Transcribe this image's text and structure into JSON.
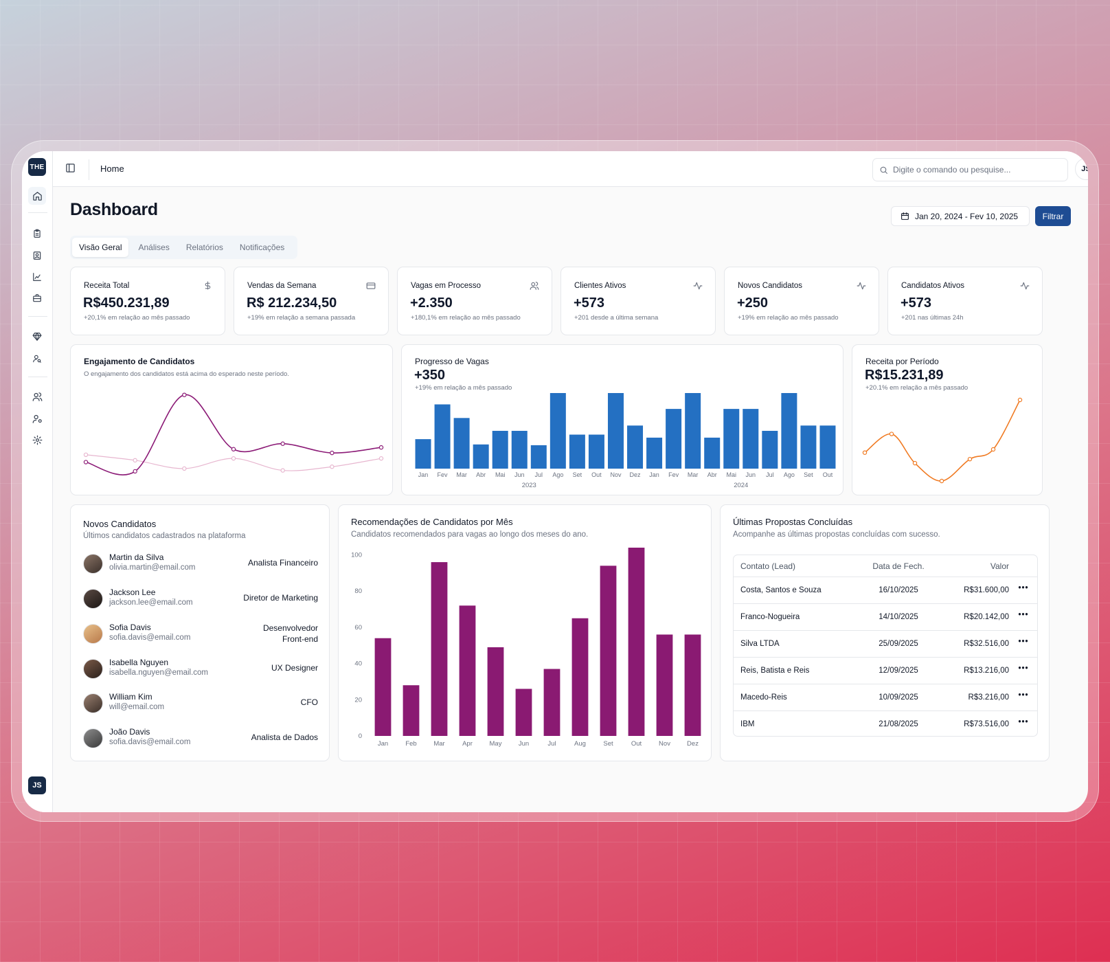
{
  "sidebar": {
    "logo": "THE",
    "avatar": "JS",
    "icons": [
      "home-icon",
      "clipboard-icon",
      "contact-card-icon",
      "chart-icon",
      "briefcase-icon",
      "gem-icon",
      "user-search-icon",
      "users-icon",
      "user-cog-icon",
      "settings-icon"
    ]
  },
  "header": {
    "breadcrumb": "Home",
    "search_placeholder": "Digite o comando ou pesquise...",
    "avatar": "JS"
  },
  "page": {
    "title": "Dashboard",
    "date_range": "Jan 20, 2024 - Fev 10, 2025",
    "filter_label": "Filtrar",
    "tabs": [
      {
        "label": "Visão Geral",
        "active": true
      },
      {
        "label": "Análises",
        "active": false
      },
      {
        "label": "Relatórios",
        "active": false
      },
      {
        "label": "Notificações",
        "active": false
      }
    ]
  },
  "kpis": [
    {
      "title": "Receita Total",
      "icon": "dollar-icon",
      "value": "R$450.231,89",
      "sub": "+20,1% em relação ao mês passado"
    },
    {
      "title": "Vendas da Semana",
      "icon": "credit-card-icon",
      "value": "R$ 212.234,50",
      "sub": "+19% em relação a semana passada"
    },
    {
      "title": "Vagas em Processo",
      "icon": "users-icon",
      "value": "+2.350",
      "sub": "+180,1% em relação ao mês passado"
    },
    {
      "title": "Clientes Ativos",
      "icon": "activity-icon",
      "value": "+573",
      "sub": "+201 desde a última semana"
    },
    {
      "title": "Novos Candidatos",
      "icon": "activity-icon",
      "value": "+250",
      "sub": "+19% em relação ao mês passado"
    },
    {
      "title": "Candidatos Ativos",
      "icon": "activity-icon",
      "value": "+573",
      "sub": "+201 nas últimas 24h"
    }
  ],
  "engagement": {
    "title": "Engajamento de Candidatos",
    "subtitle": "O engajamento dos candidatos está acima do esperado neste período."
  },
  "vagas": {
    "title": "Progresso de Vagas",
    "value": "+350",
    "note": "+19% em relação a mês passado"
  },
  "receita": {
    "title": "Receita por Período",
    "value": "R$15.231,89",
    "note": "+20.1% em relação a mês passado"
  },
  "novos": {
    "title": "Novos Candidatos",
    "subtitle": "Últimos candidatos cadastrados na plataforma",
    "people": [
      {
        "name": "Martin da Silva",
        "email": "olivia.martin@email.com",
        "role": "Analista Financeiro"
      },
      {
        "name": "Jackson Lee",
        "email": "jackson.lee@email.com",
        "role": "Diretor de Marketing"
      },
      {
        "name": "Sofia Davis",
        "email": "sofia.davis@email.com",
        "role_line1": "Desenvolvedor",
        "role_line2": "Front-end"
      },
      {
        "name": "Isabella Nguyen",
        "email": "isabella.nguyen@email.com",
        "role": "UX Designer"
      },
      {
        "name": "William Kim",
        "email": "will@email.com",
        "role": "CFO"
      },
      {
        "name": "João Davis",
        "email": "sofia.davis@email.com",
        "role": "Analista de Dados"
      }
    ]
  },
  "recomendacoes": {
    "title": "Recomendações de Candidatos por Mês",
    "subtitle": "Candidatos recomendados para vagas ao longo dos meses do ano."
  },
  "propostas": {
    "title": "Últimas Propostas Concluídas",
    "subtitle": "Acompanhe as últimas propostas concluídas com sucesso.",
    "columns": [
      "Contato (Lead)",
      "Data de Fech.",
      "Valor"
    ],
    "rows": [
      {
        "contato": "Costa, Santos e Souza",
        "data": "16/10/2025",
        "valor": "R$31.600,00"
      },
      {
        "contato": "Franco-Nogueira",
        "data": "14/10/2025",
        "valor": "R$20.142,00"
      },
      {
        "contato": "Silva LTDA",
        "data": "25/09/2025",
        "valor": "R$32.516,00"
      },
      {
        "contato": "Reis, Batista e Reis",
        "data": "12/09/2025",
        "valor": "R$13.216,00"
      },
      {
        "contato": "Macedo-Reis",
        "data": "10/09/2025",
        "valor": "R$3.216,00"
      },
      {
        "contato": "IBM",
        "data": "21/08/2025",
        "valor": "R$73.516,00"
      }
    ],
    "more_glyph": "•••"
  },
  "chart_data": [
    {
      "id": "engajamento",
      "type": "line",
      "title": "Engajamento de Candidatos",
      "x": [
        1,
        2,
        3,
        4,
        5,
        6,
        7
      ],
      "series": [
        {
          "name": "",
          "color": "#8b1a76",
          "values": [
            22,
            12,
            95,
            36,
            42,
            32,
            38
          ]
        },
        {
          "name": "",
          "color": "#e7b6cf",
          "values": [
            30,
            24,
            15,
            26,
            13,
            17,
            26
          ]
        }
      ],
      "ylim": [
        0,
        100
      ],
      "grid": false
    },
    {
      "id": "progresso-vagas",
      "type": "bar",
      "title": "Progresso de Vagas",
      "color": "#2470c2",
      "categories": [
        "Jan",
        "Fev",
        "Mar",
        "Abr",
        "Mai",
        "Jun",
        "Jul",
        "Ago",
        "Set",
        "Out",
        "Nov",
        "Dez",
        "Jan",
        "Fev",
        "Mar",
        "Abr",
        "Mai",
        "Jun",
        "Jul",
        "Ago",
        "Set",
        "Out"
      ],
      "groups": [
        {
          "label": "2023",
          "start": 0,
          "end": 11
        },
        {
          "label": "2024",
          "start": 12,
          "end": 21
        }
      ],
      "values": [
        39,
        85,
        67,
        32,
        50,
        50,
        31,
        100,
        45,
        45,
        100,
        57,
        41,
        79,
        100,
        41,
        79,
        79,
        50,
        100,
        57,
        57
      ],
      "ylim": [
        0,
        100
      ],
      "grid": false
    },
    {
      "id": "receita-periodo",
      "type": "line",
      "title": "Receita por Período",
      "color": "#f07a22",
      "x": [
        1,
        2,
        3,
        4,
        5,
        6,
        7
      ],
      "values": [
        35,
        58,
        22,
        0,
        27,
        39,
        100
      ],
      "ylim": [
        0,
        100
      ],
      "grid": false
    },
    {
      "id": "recomendacoes",
      "type": "bar",
      "title": "Recomendações de Candidatos por Mês",
      "color": "#8a1a72",
      "categories": [
        "Jan",
        "Feb",
        "Mar",
        "Apr",
        "May",
        "Jun",
        "Jul",
        "Aug",
        "Set",
        "Out",
        "Nov",
        "Dez"
      ],
      "values": [
        54,
        28,
        96,
        72,
        49,
        26,
        37,
        65,
        94,
        104,
        56,
        56
      ],
      "yticks": [
        0,
        20,
        40,
        60,
        80,
        100
      ],
      "ylim": [
        0,
        104
      ],
      "grid": false
    }
  ]
}
